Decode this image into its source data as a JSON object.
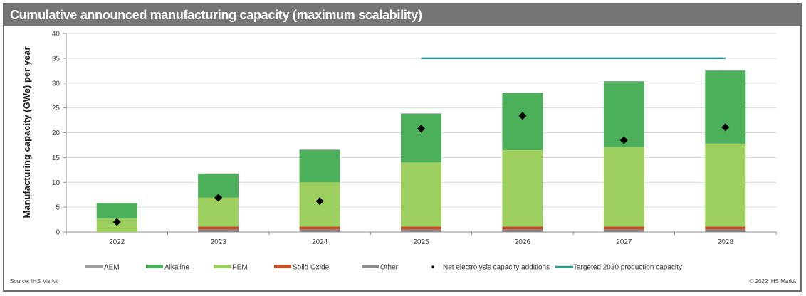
{
  "title": "Cumulative announced manufacturing capacity (maximum scalability)",
  "source": "Source: IHS Markit",
  "copyright": "© 2022 IHS Markit",
  "colors": {
    "AEM": "#9e9e9e",
    "Alkaline": "#4caf5a",
    "PEM": "#9ccf5e",
    "Solid Oxide": "#c4502a",
    "Other": "#8c8c8c",
    "marker": "#000000",
    "target_line": "#2e9a92",
    "grid": "#d9d9d9",
    "axis": "#8c8c8c"
  },
  "chart_data": {
    "type": "bar",
    "stacked": true,
    "title": "Cumulative announced manufacturing capacity (maximum scalability)",
    "xlabel": "",
    "ylabel": "Manufacturing capacity (GWe) per year",
    "ylim": [
      0,
      40
    ],
    "yticks": [
      0,
      5,
      10,
      15,
      20,
      25,
      30,
      35,
      40
    ],
    "grid": true,
    "legend_position": "bottom",
    "categories": [
      "2022",
      "2023",
      "2024",
      "2025",
      "2026",
      "2027",
      "2028"
    ],
    "stack_order": [
      "Other",
      "Solid Oxide",
      "PEM",
      "Alkaline",
      "AEM"
    ],
    "series": [
      {
        "name": "AEM",
        "type": "bar",
        "values": [
          0.1,
          0.1,
          0.1,
          0.1,
          0.1,
          0.1,
          0.2
        ]
      },
      {
        "name": "Alkaline",
        "type": "bar",
        "values": [
          3.1,
          4.8,
          6.5,
          9.8,
          11.5,
          13.2,
          14.7
        ]
      },
      {
        "name": "PEM",
        "type": "bar",
        "values": [
          2.7,
          5.8,
          8.9,
          12.9,
          15.4,
          16.0,
          16.7
        ]
      },
      {
        "name": "Solid Oxide",
        "type": "bar",
        "values": [
          0,
          0.6,
          0.6,
          0.6,
          0.6,
          0.6,
          0.6
        ]
      },
      {
        "name": "Other",
        "type": "bar",
        "values": [
          0,
          0.5,
          0.5,
          0.5,
          0.5,
          0.5,
          0.5
        ]
      },
      {
        "name": "Net electrolysis capacity additions",
        "type": "scatter",
        "values": [
          2.0,
          6.9,
          6.2,
          20.8,
          23.4,
          18.5,
          21.1
        ]
      },
      {
        "name": "Targeted 2030 production capacity",
        "type": "line",
        "value": 35,
        "x_range": [
          "2025",
          "2028"
        ]
      }
    ],
    "legend": [
      {
        "label": "AEM",
        "kind": "bar"
      },
      {
        "label": "Alkaline",
        "kind": "bar"
      },
      {
        "label": "PEM",
        "kind": "bar"
      },
      {
        "label": "Solid Oxide",
        "kind": "bar"
      },
      {
        "label": "Other",
        "kind": "bar"
      },
      {
        "label": "Net electrolysis capacity additions",
        "kind": "marker"
      },
      {
        "label": "Targeted 2030 production capacity",
        "kind": "line"
      }
    ]
  }
}
